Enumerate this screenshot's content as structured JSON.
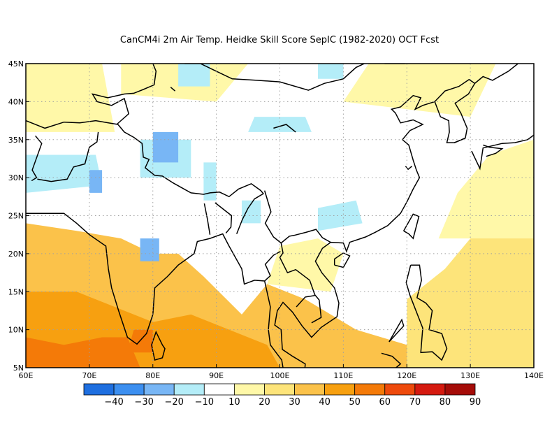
{
  "title": "CanCM4i  2m Air Temp. Heidke Skill Score SepIC (1982-2020) OCT Fcst",
  "map": {
    "lon_range": [
      60,
      140
    ],
    "lat_range": [
      5,
      45
    ],
    "lon_ticks": [
      "60E",
      "70E",
      "80E",
      "90E",
      "100E",
      "110E",
      "120E",
      "130E",
      "140E"
    ],
    "lat_ticks": [
      "5N",
      "10N",
      "15N",
      "20N",
      "25N",
      "30N",
      "35N",
      "40N",
      "45N"
    ],
    "grid": "dotted"
  },
  "colorbar": {
    "labels": [
      "-40",
      "-30",
      "-20",
      "-10",
      "10",
      "20",
      "30",
      "40",
      "50",
      "60",
      "70",
      "80",
      "90"
    ],
    "colors": [
      "#1e6fe0",
      "#3c8ff0",
      "#78b6f5",
      "#b4edf8",
      "#ffffff",
      "#fff8a8",
      "#fde47a",
      "#fbc24a",
      "#f7a010",
      "#f47a08",
      "#ee4a0c",
      "#d51a10",
      "#a50c08"
    ]
  },
  "regions": [
    {
      "points": [
        [
          60,
          5
        ],
        [
          140,
          5
        ],
        [
          140,
          12
        ],
        [
          128,
          12
        ],
        [
          120,
          8
        ],
        [
          112,
          10
        ],
        [
          104,
          14
        ],
        [
          98,
          16
        ],
        [
          94,
          12
        ],
        [
          88,
          17
        ],
        [
          84,
          20
        ],
        [
          80,
          20
        ],
        [
          75,
          22
        ],
        [
          68,
          23
        ],
        [
          60,
          24
        ]
      ],
      "level": 3
    },
    {
      "points": [
        [
          60,
          5
        ],
        [
          100,
          5
        ],
        [
          98,
          8
        ],
        [
          92,
          10
        ],
        [
          86,
          12
        ],
        [
          80,
          11
        ],
        [
          74,
          13
        ],
        [
          68,
          15
        ],
        [
          60,
          15
        ]
      ],
      "level": 4
    },
    {
      "points": [
        [
          60,
          5
        ],
        [
          78,
          5
        ],
        [
          76,
          9
        ],
        [
          72,
          9
        ],
        [
          66,
          8
        ],
        [
          60,
          9
        ]
      ],
      "level": 5
    },
    {
      "points": [
        [
          76,
          7
        ],
        [
          80,
          7
        ],
        [
          80,
          10
        ],
        [
          77,
          10
        ]
      ],
      "level": 5
    },
    {
      "points": [
        [
          120,
          5
        ],
        [
          140,
          5
        ],
        [
          140,
          22
        ],
        [
          133,
          25
        ],
        [
          126,
          18
        ],
        [
          120,
          14
        ]
      ],
      "level": 2
    },
    {
      "points": [
        [
          125,
          22
        ],
        [
          140,
          22
        ],
        [
          140,
          35
        ],
        [
          133,
          33
        ],
        [
          128,
          28
        ]
      ],
      "level": 1
    },
    {
      "points": [
        [
          98,
          16
        ],
        [
          108,
          15
        ],
        [
          110,
          20
        ],
        [
          106,
          22
        ],
        [
          100,
          21
        ]
      ],
      "level": 1
    },
    {
      "points": [
        [
          60,
          36
        ],
        [
          74,
          36
        ],
        [
          72,
          45
        ],
        [
          60,
          45
        ]
      ],
      "level": 1
    },
    {
      "points": [
        [
          110,
          40
        ],
        [
          130,
          38
        ],
        [
          134,
          45
        ],
        [
          114,
          45
        ]
      ],
      "level": 1
    },
    {
      "points": [
        [
          75,
          41
        ],
        [
          90,
          40
        ],
        [
          95,
          45
        ],
        [
          75,
          45
        ]
      ],
      "level": 1
    },
    {
      "points": [
        [
          88,
          27
        ],
        [
          90,
          27
        ],
        [
          90,
          32
        ],
        [
          88,
          32
        ]
      ],
      "level": -1
    },
    {
      "points": [
        [
          78,
          30
        ],
        [
          86,
          30
        ],
        [
          86,
          35
        ],
        [
          78,
          35
        ]
      ],
      "level": -1
    },
    {
      "points": [
        [
          60,
          28
        ],
        [
          72,
          29
        ],
        [
          71,
          33
        ],
        [
          60,
          33
        ]
      ],
      "level": -1
    },
    {
      "points": [
        [
          70,
          28
        ],
        [
          72,
          28
        ],
        [
          72,
          31
        ],
        [
          70,
          31
        ]
      ],
      "level": -2
    },
    {
      "points": [
        [
          80,
          32
        ],
        [
          84,
          32
        ],
        [
          84,
          36
        ],
        [
          80,
          36
        ]
      ],
      "level": -2
    },
    {
      "points": [
        [
          94,
          24
        ],
        [
          97,
          24
        ],
        [
          97,
          27
        ],
        [
          94,
          27
        ]
      ],
      "level": -1
    },
    {
      "points": [
        [
          106,
          23
        ],
        [
          113,
          24
        ],
        [
          112,
          27
        ],
        [
          106,
          26
        ]
      ],
      "level": -1
    },
    {
      "points": [
        [
          95,
          36
        ],
        [
          105,
          36
        ],
        [
          104,
          38
        ],
        [
          96,
          38
        ]
      ],
      "level": -1
    },
    {
      "points": [
        [
          84,
          42
        ],
        [
          89,
          42
        ],
        [
          89,
          45
        ],
        [
          84,
          45
        ]
      ],
      "level": -1
    },
    {
      "points": [
        [
          106,
          43
        ],
        [
          110,
          43
        ],
        [
          110,
          45
        ],
        [
          106,
          45
        ]
      ],
      "level": -1
    },
    {
      "points": [
        [
          78,
          19
        ],
        [
          81,
          19
        ],
        [
          81,
          22
        ],
        [
          78,
          22
        ]
      ],
      "level": -2
    }
  ]
}
